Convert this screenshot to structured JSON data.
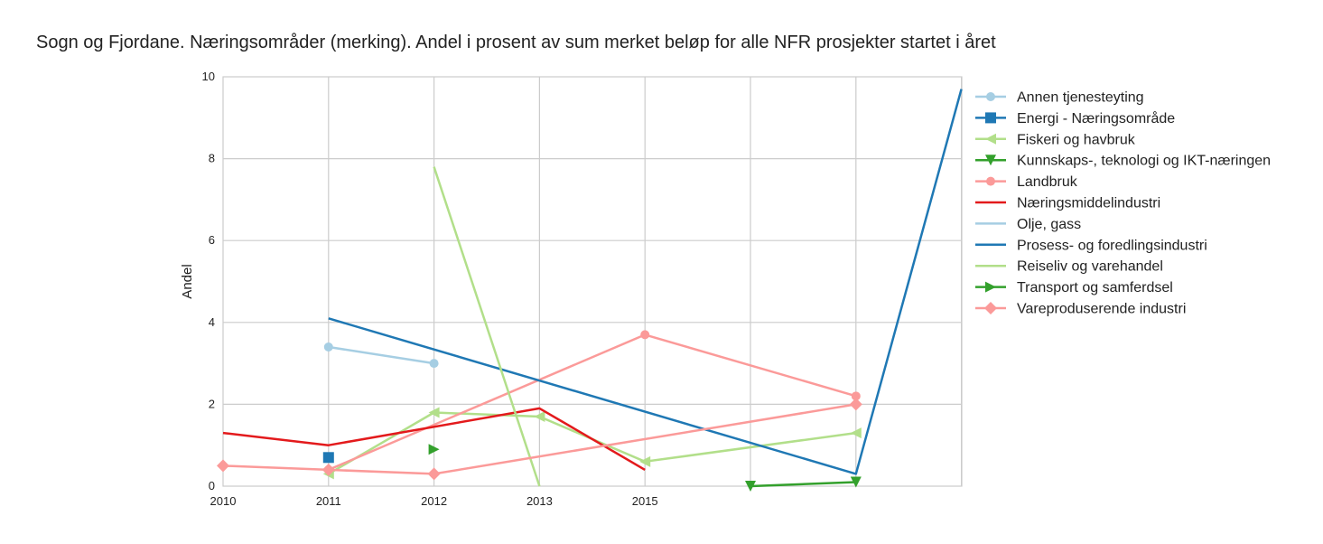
{
  "chart_data": {
    "type": "line",
    "title": "Sogn og Fjordane. Næringsområder (merking). Andel i prosent av sum merket beløp for alle NFR prosjekter startet i året",
    "xlabel": "",
    "ylabel": "Andel",
    "x_tick_labels": [
      "2010",
      "2011",
      "2012",
      "2013",
      "2015",
      "",
      "",
      ""
    ],
    "ylim": [
      0,
      10
    ],
    "yticks": [
      0,
      2,
      4,
      6,
      8,
      10
    ],
    "grid": true,
    "legend_position": "right",
    "series": [
      {
        "name": "Annen tjenesteyting",
        "color": "#a6cee3",
        "marker": "circle",
        "line": true,
        "points": [
          [
            1,
            3.4
          ],
          [
            2,
            3.0
          ]
        ]
      },
      {
        "name": "Energi - Næringsområde",
        "color": "#1f78b4",
        "marker": "square",
        "line": true,
        "points": [
          [
            1,
            0.7
          ]
        ]
      },
      {
        "name": "Fiskeri og havbruk",
        "color": "#b2df8a",
        "marker": "triangle-left",
        "line": true,
        "points": [
          [
            1,
            0.3
          ],
          [
            2,
            1.8
          ],
          [
            3,
            1.7
          ],
          [
            4,
            0.6
          ],
          [
            6,
            1.3
          ]
        ]
      },
      {
        "name": "Kunnskaps-, teknologi og IKT-næringen",
        "color": "#33a02c",
        "marker": "triangle-down",
        "line": true,
        "points": [
          [
            5,
            0.0
          ],
          [
            6,
            0.1
          ]
        ]
      },
      {
        "name": "Landbruk",
        "color": "#fb9a99",
        "marker": "circle",
        "line": true,
        "points": [
          [
            1,
            0.4
          ],
          [
            4,
            3.7
          ],
          [
            6,
            2.2
          ]
        ]
      },
      {
        "name": "Næringsmiddelindustri",
        "color": "#e31a1c",
        "marker": "none",
        "line": true,
        "points": [
          [
            0,
            1.3
          ],
          [
            1,
            1.0
          ],
          [
            3,
            1.9
          ],
          [
            4,
            0.4
          ]
        ]
      },
      {
        "name": "Olje, gass",
        "color": "#a6cee3",
        "marker": "none",
        "line": true,
        "points": []
      },
      {
        "name": "Prosess- og foredlingsindustri",
        "color": "#1f78b4",
        "marker": "none",
        "line": true,
        "points": [
          [
            1,
            4.1
          ],
          [
            6,
            0.3
          ],
          [
            7,
            9.7
          ]
        ]
      },
      {
        "name": "Reiseliv og varehandel",
        "color": "#b2df8a",
        "marker": "none",
        "line": true,
        "points": [
          [
            2,
            7.8
          ],
          [
            3,
            0.0
          ]
        ]
      },
      {
        "name": "Transport og samferdsel",
        "color": "#33a02c",
        "marker": "triangle-right",
        "line": true,
        "points": [
          [
            2,
            0.9
          ]
        ]
      },
      {
        "name": "Vareproduserende industri",
        "color": "#fb9a99",
        "marker": "diamond",
        "line": true,
        "points": [
          [
            0,
            0.5
          ],
          [
            1,
            0.4
          ],
          [
            2,
            0.3
          ],
          [
            6,
            2.0
          ]
        ]
      }
    ]
  }
}
